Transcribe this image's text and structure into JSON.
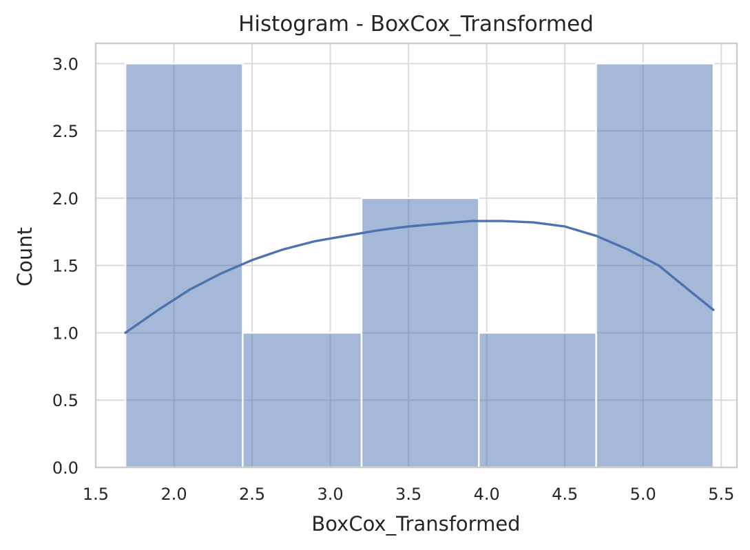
{
  "chart_data": {
    "type": "bar",
    "subtype": "histogram-with-kde",
    "title": "Histogram - BoxCox_Transformed",
    "xlabel": "BoxCox_Transformed",
    "ylabel": "Count",
    "xlim": [
      1.5,
      5.6
    ],
    "ylim": [
      0,
      3.15
    ],
    "xticks": [
      "1.5",
      "2.0",
      "2.5",
      "3.0",
      "3.5",
      "4.0",
      "4.5",
      "5.0",
      "5.5"
    ],
    "xtick_values": [
      1.5,
      2.0,
      2.5,
      3.0,
      3.5,
      4.0,
      4.5,
      5.0,
      5.5
    ],
    "yticks": [
      "0.0",
      "0.5",
      "1.0",
      "1.5",
      "2.0",
      "2.5",
      "3.0"
    ],
    "ytick_values": [
      0,
      0.5,
      1.0,
      1.5,
      2.0,
      2.5,
      3.0
    ],
    "bins": [
      {
        "x0": 1.69,
        "x1": 2.44,
        "count": 3
      },
      {
        "x0": 2.44,
        "x1": 3.2,
        "count": 1
      },
      {
        "x0": 3.2,
        "x1": 3.95,
        "count": 2
      },
      {
        "x0": 3.95,
        "x1": 4.7,
        "count": 1
      },
      {
        "x0": 4.7,
        "x1": 5.45,
        "count": 3
      }
    ],
    "kde": {
      "x": [
        1.69,
        1.9,
        2.1,
        2.3,
        2.5,
        2.7,
        2.9,
        3.1,
        3.3,
        3.5,
        3.7,
        3.9,
        4.1,
        4.3,
        4.5,
        4.7,
        4.9,
        5.1,
        5.3,
        5.45
      ],
      "y": [
        1.0,
        1.17,
        1.32,
        1.44,
        1.54,
        1.62,
        1.68,
        1.72,
        1.76,
        1.79,
        1.81,
        1.83,
        1.83,
        1.82,
        1.79,
        1.72,
        1.62,
        1.5,
        1.31,
        1.17
      ]
    },
    "grid": true,
    "colors": {
      "bar": "#4c72b0",
      "kde": "#4c72b0",
      "grid": "#dadada",
      "frame": "#cccccc"
    }
  }
}
